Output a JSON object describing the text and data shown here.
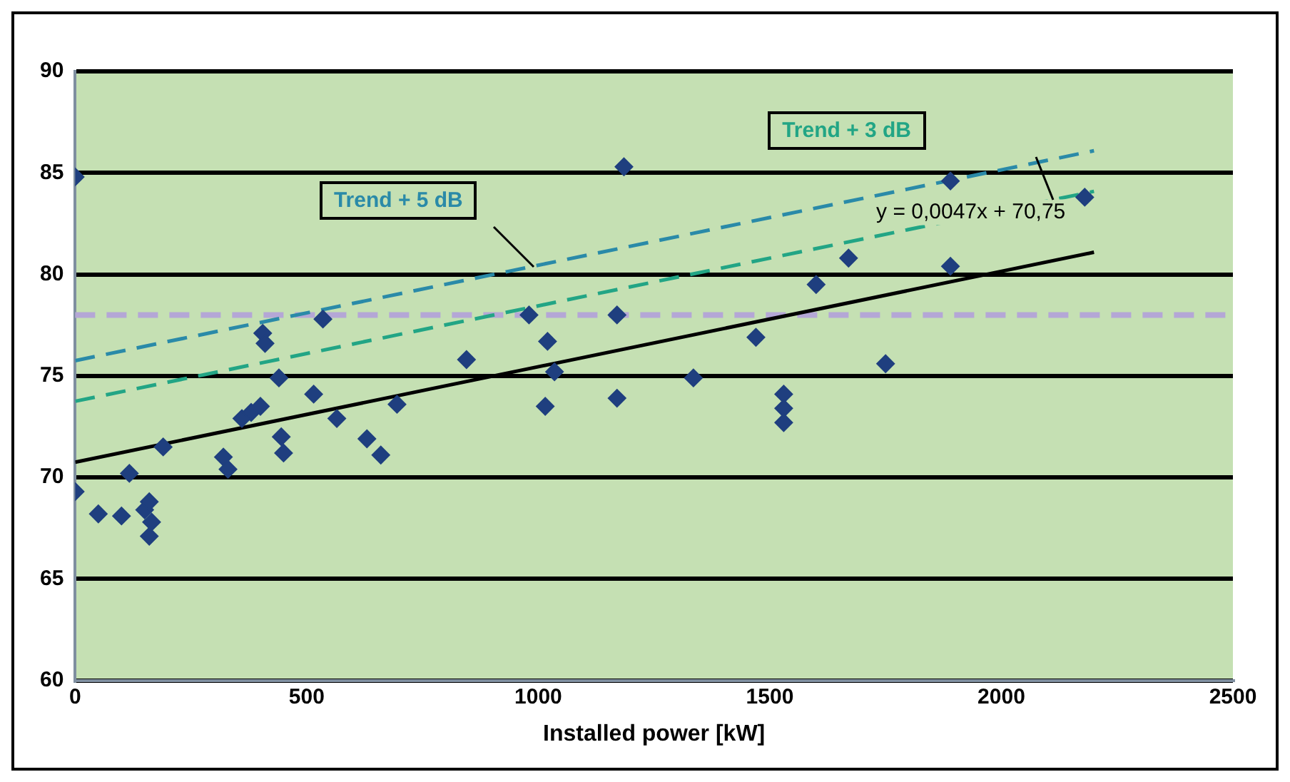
{
  "chart_data": {
    "type": "scatter",
    "xlabel": "Installed power [kW]",
    "xlim": [
      0,
      2500
    ],
    "xticks": [
      0,
      500,
      1000,
      1500,
      2000,
      2500
    ],
    "ylim": [
      60,
      90
    ],
    "yticks": [
      60,
      65,
      70,
      75,
      80,
      85,
      90
    ],
    "grid": "y",
    "legend": false,
    "marker": "diamond",
    "annotations": [
      "y = 0,0047x + 70,75"
    ],
    "ref_lines": [
      {
        "axis": "y",
        "value": 78,
        "color": "#b4a7d6",
        "line_style": "dashed"
      }
    ],
    "series": [
      {
        "color": "#1f3f7f",
        "x": [
          0,
          0,
          50,
          100,
          117,
          150,
          160,
          165,
          160,
          190,
          320,
          330,
          360,
          380,
          400,
          405,
          410,
          440,
          445,
          450,
          535,
          515,
          565,
          630,
          660,
          695,
          845,
          980,
          1020,
          1035,
          1015,
          1170,
          1170,
          1185,
          1335,
          1470,
          1530,
          1530,
          1530,
          1600,
          1670,
          1750,
          1890,
          1890,
          2180
        ],
        "values": [
          84.8,
          69.3,
          68.2,
          68.1,
          70.2,
          68.4,
          67.1,
          67.8,
          68.8,
          71.5,
          71.0,
          70.4,
          72.9,
          73.2,
          73.5,
          77.1,
          76.6,
          74.9,
          72.0,
          71.2,
          77.8,
          74.1,
          72.9,
          71.9,
          71.1,
          73.6,
          75.8,
          78.0,
          76.7,
          75.2,
          73.5,
          78.0,
          73.9,
          85.3,
          74.9,
          76.9,
          74.1,
          73.4,
          72.7,
          79.5,
          80.8,
          75.6,
          84.6,
          80.4,
          83.8
        ]
      },
      {
        "type": "line",
        "color": "#000000",
        "line_style": "solid",
        "marker": "none",
        "x": [
          0,
          2200
        ],
        "values": [
          70.75,
          81.09
        ]
      },
      {
        "type": "line",
        "name": "Trend + 5 dB",
        "color": "#2a8aa8",
        "line_style": "dashed",
        "marker": "none",
        "x": [
          0,
          2200
        ],
        "values": [
          75.75,
          86.09
        ]
      },
      {
        "type": "line",
        "name": "Trend + 3 dB",
        "color": "#22a585",
        "line_style": "dashed",
        "marker": "none",
        "x": [
          0,
          2200
        ],
        "values": [
          73.75,
          84.09
        ]
      }
    ]
  }
}
